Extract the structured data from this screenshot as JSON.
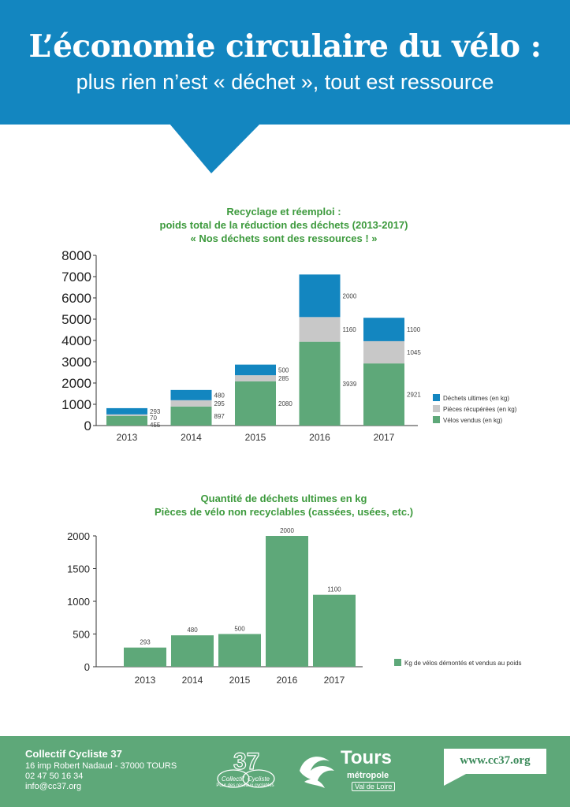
{
  "header": {
    "title": "L’économie circulaire du vélo :",
    "subtitle": "plus rien n’est « déchet », tout est ressource"
  },
  "colors": {
    "header_blue": "#1386c0",
    "dechets_ultimes": "#1386c0",
    "pieces_recuperees": "#c8c8c8",
    "velos_vendus": "#5ea879",
    "heading_green": "#3d9a3d",
    "footer_green": "#5ea879"
  },
  "chart_data": [
    {
      "type": "bar",
      "stacked": true,
      "title_lines": [
        "Recyclage et réemploi :",
        "poids total de la réduction des déchets (2013-2017)",
        "« Nos déchets sont des ressources ! »"
      ],
      "categories": [
        "2013",
        "2014",
        "2015",
        "2016",
        "2017"
      ],
      "series": [
        {
          "name": "Vélos vendus (en kg)",
          "values": [
            455,
            897,
            2080,
            3939,
            2921
          ]
        },
        {
          "name": "Pièces récupérées (en kg)",
          "values": [
            70,
            295,
            285,
            1160,
            1045
          ]
        },
        {
          "name": "Déchets ultimes (en kg)",
          "values": [
            293,
            480,
            500,
            2000,
            1100
          ]
        }
      ],
      "legend_order": [
        "Déchets ultimes (en kg)",
        "Pièces récupérées (en kg)",
        "Vélos vendus (en kg)"
      ],
      "ylim": [
        0,
        8000
      ],
      "yticks": [
        "0",
        "1000",
        "2000",
        "3000",
        "4000",
        "5000",
        "6000",
        "7000",
        "8000"
      ],
      "legend_position": "right",
      "grid": false
    },
    {
      "type": "bar",
      "title_lines": [
        "Quantité de déchets ultimes en kg",
        "Pièces de vélo non recyclables (cassées, usées, etc.)"
      ],
      "categories": [
        "2013",
        "2014",
        "2015",
        "2016",
        "2017"
      ],
      "series": [
        {
          "name": "Kg de vélos démontés et vendus au poids",
          "values": [
            293,
            480,
            500,
            2000,
            1100
          ]
        }
      ],
      "ylim": [
        0,
        2000
      ],
      "yticks": [
        "0",
        "500",
        "1000",
        "1500",
        "2000"
      ],
      "legend_position": "right",
      "grid": false
    }
  ],
  "footer": {
    "org_name": "Collectif Cycliste 37",
    "address": "16 imp Robert Nadaud - 37000 TOURS",
    "phone": "02 47 50 16 34",
    "email": "info@cc37.org",
    "logo_37_caption": "Pour des réseaux cyclables",
    "tours_word": "Tours",
    "tours_metro": "métropole",
    "tours_vdl": "Val de Loire",
    "website": "www.cc37.org"
  }
}
